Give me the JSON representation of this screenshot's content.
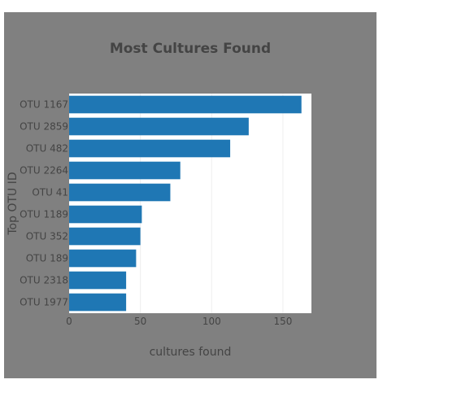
{
  "chart_data": {
    "type": "bar",
    "orientation": "horizontal",
    "title": "Most Cultures Found",
    "xlabel": "cultures found",
    "ylabel": "Top OTU ID",
    "categories": [
      "OTU 1167",
      "OTU 2859",
      "OTU 482",
      "OTU 2264",
      "OTU 41",
      "OTU 1189",
      "OTU 352",
      "OTU 189",
      "OTU 2318",
      "OTU 1977"
    ],
    "values": [
      163,
      126,
      113,
      78,
      71,
      51,
      50,
      47,
      40,
      40
    ],
    "xlim": [
      0,
      170
    ],
    "xticks": [
      0,
      50,
      100,
      150
    ],
    "grid": true,
    "legend": "none",
    "colors": {
      "bar": "#1f77b4",
      "panel_background": "#808080",
      "plot_background": "#ffffff",
      "text": "#444444",
      "grid": "#eeeeee"
    }
  }
}
